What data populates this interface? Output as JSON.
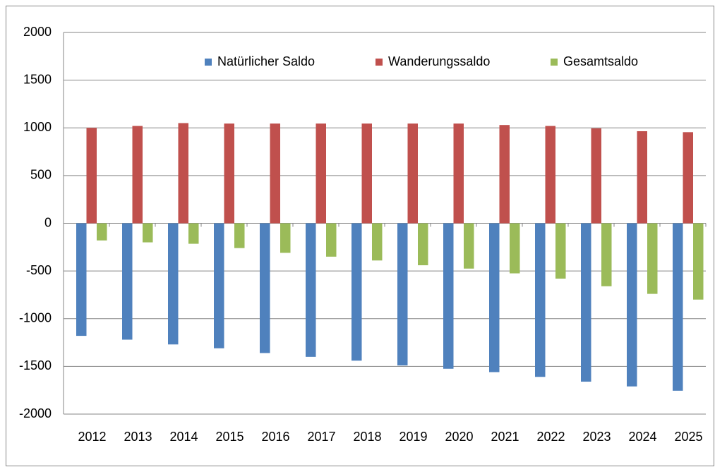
{
  "chart_data": {
    "type": "bar",
    "categories": [
      "2012",
      "2013",
      "2014",
      "2015",
      "2016",
      "2017",
      "2018",
      "2019",
      "2020",
      "2021",
      "2022",
      "2023",
      "2024",
      "2025"
    ],
    "series": [
      {
        "name": "Natürlicher Saldo",
        "color": "#4f81bd",
        "values": [
          -1180,
          -1220,
          -1270,
          -1310,
          -1360,
          -1400,
          -1440,
          -1490,
          -1525,
          -1560,
          -1610,
          -1660,
          -1710,
          -1755
        ]
      },
      {
        "name": "Wanderungssaldo",
        "color": "#c0504d",
        "values": [
          1000,
          1020,
          1050,
          1045,
          1045,
          1045,
          1045,
          1045,
          1045,
          1030,
          1020,
          995,
          965,
          955
        ]
      },
      {
        "name": "Gesamtsaldo",
        "color": "#9bbb59",
        "values": [
          -180,
          -200,
          -215,
          -260,
          -310,
          -350,
          -390,
          -440,
          -475,
          -525,
          -580,
          -660,
          -740,
          -800
        ]
      }
    ],
    "ylim": [
      -2000,
      2000
    ],
    "yticks": [
      -2000,
      -1500,
      -1000,
      -500,
      0,
      500,
      1000,
      1500,
      2000
    ],
    "grid": true,
    "legend": "top"
  }
}
